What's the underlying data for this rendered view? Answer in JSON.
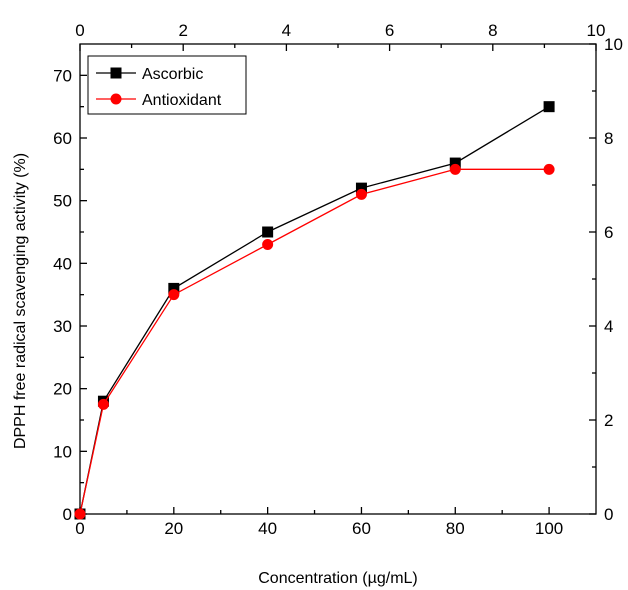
{
  "chart_data": {
    "type": "line",
    "xlabel": "Concentration (µg/mL)",
    "ylabel": "DPPH free radical scavenging activity (%)",
    "xlim": [
      0,
      110
    ],
    "ylim": [
      0,
      75
    ],
    "x_ticks": [
      "0",
      "20",
      "40",
      "60",
      "80",
      "100"
    ],
    "y_ticks": [
      "0",
      "10",
      "20",
      "30",
      "40",
      "50",
      "60",
      "70"
    ],
    "top_axis": {
      "range": [
        0,
        10
      ],
      "ticks": [
        "0",
        "2",
        "4",
        "6",
        "8",
        "10"
      ]
    },
    "right_axis": {
      "range": [
        0,
        10
      ],
      "ticks": [
        "0",
        "2",
        "4",
        "6",
        "8",
        "10"
      ]
    },
    "legend_position": "top-left",
    "x": [
      0,
      5,
      20,
      40,
      60,
      80,
      100
    ],
    "series": [
      {
        "name": "Ascorbic",
        "color": "#000000",
        "marker": "square",
        "values": [
          0,
          18,
          36,
          45,
          52,
          56,
          65
        ]
      },
      {
        "name": "Antioxidant",
        "color": "#ff0000",
        "marker": "circle",
        "values": [
          0,
          17.5,
          35,
          43,
          51,
          55,
          55
        ]
      }
    ]
  }
}
